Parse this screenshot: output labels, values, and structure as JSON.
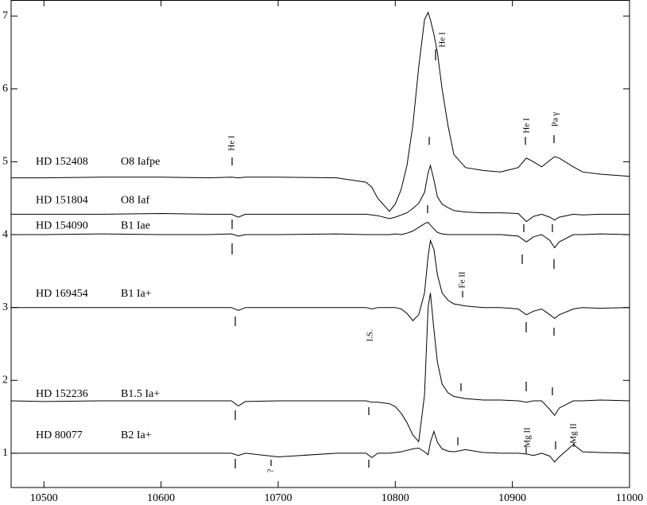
{
  "chart_data": {
    "type": "line",
    "x": [
      10472,
      10500,
      10550,
      10600,
      10640,
      10660,
      10666,
      10672,
      10700,
      10750,
      10775,
      10780,
      10785,
      10795,
      10800,
      10805,
      10810,
      10815,
      10820,
      10825,
      10828,
      10830,
      10833,
      10836,
      10840,
      10845,
      10850,
      10860,
      10875,
      10890,
      10905,
      10912,
      10918,
      10925,
      10932,
      10936,
      10940,
      10952,
      10960,
      10975,
      11000
    ],
    "series": [
      {
        "name": "HD 152408",
        "spectral_type": "O8 Iafpe",
        "color": "#000000",
        "values": [
          4.78,
          4.78,
          4.79,
          4.79,
          4.78,
          4.79,
          4.78,
          4.79,
          4.79,
          4.78,
          4.72,
          4.65,
          4.5,
          4.32,
          4.42,
          4.62,
          4.95,
          5.5,
          6.3,
          6.95,
          7.05,
          6.95,
          6.75,
          6.5,
          6.0,
          5.5,
          5.1,
          4.92,
          4.88,
          4.86,
          4.92,
          5.05,
          5.0,
          4.93,
          5.02,
          5.07,
          5.05,
          4.93,
          4.86,
          4.83,
          4.8
        ]
      },
      {
        "name": "HD 151804",
        "spectral_type": "O8 Iaf",
        "color": "#000000",
        "values": [
          4.28,
          4.28,
          4.28,
          4.29,
          4.28,
          4.28,
          4.24,
          4.28,
          4.28,
          4.28,
          4.28,
          4.27,
          4.26,
          4.22,
          4.24,
          4.27,
          4.3,
          4.36,
          4.43,
          4.58,
          4.85,
          4.95,
          4.75,
          4.52,
          4.42,
          4.37,
          4.33,
          4.31,
          4.3,
          4.3,
          4.29,
          4.18,
          4.25,
          4.28,
          4.24,
          4.2,
          4.24,
          4.28,
          4.27,
          4.28,
          4.28
        ]
      },
      {
        "name": "HD 154090",
        "spectral_type": "B1 Iae",
        "color": "#000000",
        "values": [
          4.0,
          4.0,
          4.01,
          4.0,
          4.0,
          4.01,
          3.98,
          4.0,
          4.0,
          4.01,
          4.0,
          4.0,
          4.0,
          4.0,
          4.01,
          4.0,
          4.02,
          4.05,
          4.1,
          4.15,
          4.17,
          4.13,
          4.08,
          4.03,
          4.01,
          4.0,
          4.0,
          4.0,
          4.0,
          4.0,
          3.98,
          3.9,
          3.97,
          4.0,
          3.92,
          3.82,
          3.9,
          4.0,
          4.0,
          4.01,
          4.0
        ]
      },
      {
        "name": "HD 169454",
        "spectral_type": "B1 Ia+",
        "color": "#000000",
        "values": [
          3.0,
          3.0,
          3.0,
          3.0,
          3.0,
          3.0,
          2.96,
          3.0,
          3.0,
          3.0,
          3.0,
          2.98,
          3.0,
          3.0,
          3.0,
          2.98,
          2.92,
          2.82,
          2.9,
          3.2,
          3.7,
          3.92,
          3.8,
          3.45,
          3.2,
          3.1,
          3.05,
          3.02,
          3.0,
          3.0,
          2.98,
          2.9,
          2.95,
          2.98,
          2.9,
          2.85,
          2.9,
          2.98,
          3.0,
          2.99,
          3.0
        ]
      },
      {
        "name": "HD 152236",
        "spectral_type": "B1.5 Ia+",
        "color": "#000000",
        "values": [
          1.72,
          1.71,
          1.72,
          1.72,
          1.72,
          1.72,
          1.65,
          1.71,
          1.72,
          1.72,
          1.72,
          1.7,
          1.7,
          1.68,
          1.64,
          1.55,
          1.42,
          1.25,
          1.16,
          1.8,
          3.0,
          3.2,
          2.7,
          2.25,
          1.95,
          1.83,
          1.78,
          1.75,
          1.73,
          1.73,
          1.72,
          1.7,
          1.72,
          1.72,
          1.6,
          1.52,
          1.62,
          1.72,
          1.72,
          1.73,
          1.72
        ]
      },
      {
        "name": "HD 80077",
        "spectral_type": "B2 Ia+",
        "color": "#000000",
        "values": [
          1.0,
          1.0,
          1.0,
          1.0,
          1.0,
          1.0,
          0.97,
          1.0,
          0.95,
          1.0,
          1.0,
          0.94,
          1.0,
          1.0,
          1.01,
          1.02,
          1.04,
          1.06,
          1.07,
          1.02,
          0.98,
          1.15,
          1.3,
          1.15,
          1.06,
          1.03,
          1.02,
          1.05,
          1.01,
          1.0,
          1.0,
          0.99,
          0.97,
          1.0,
          0.96,
          0.88,
          0.95,
          1.12,
          1.02,
          1.01,
          1.0
        ]
      }
    ],
    "annotations": [
      "He I",
      "He I",
      "He I",
      "Pa γ",
      "Fe II",
      "I.S.",
      "Mg II",
      "Mg II",
      "?"
    ],
    "xlim": [
      10472,
      11000
    ],
    "xticks": [
      10500,
      10600,
      10700,
      10800,
      10900,
      11000
    ],
    "ylim": [
      0.53,
      7.22
    ],
    "yticks": [
      1,
      2,
      3,
      4,
      5,
      6,
      7
    ]
  }
}
